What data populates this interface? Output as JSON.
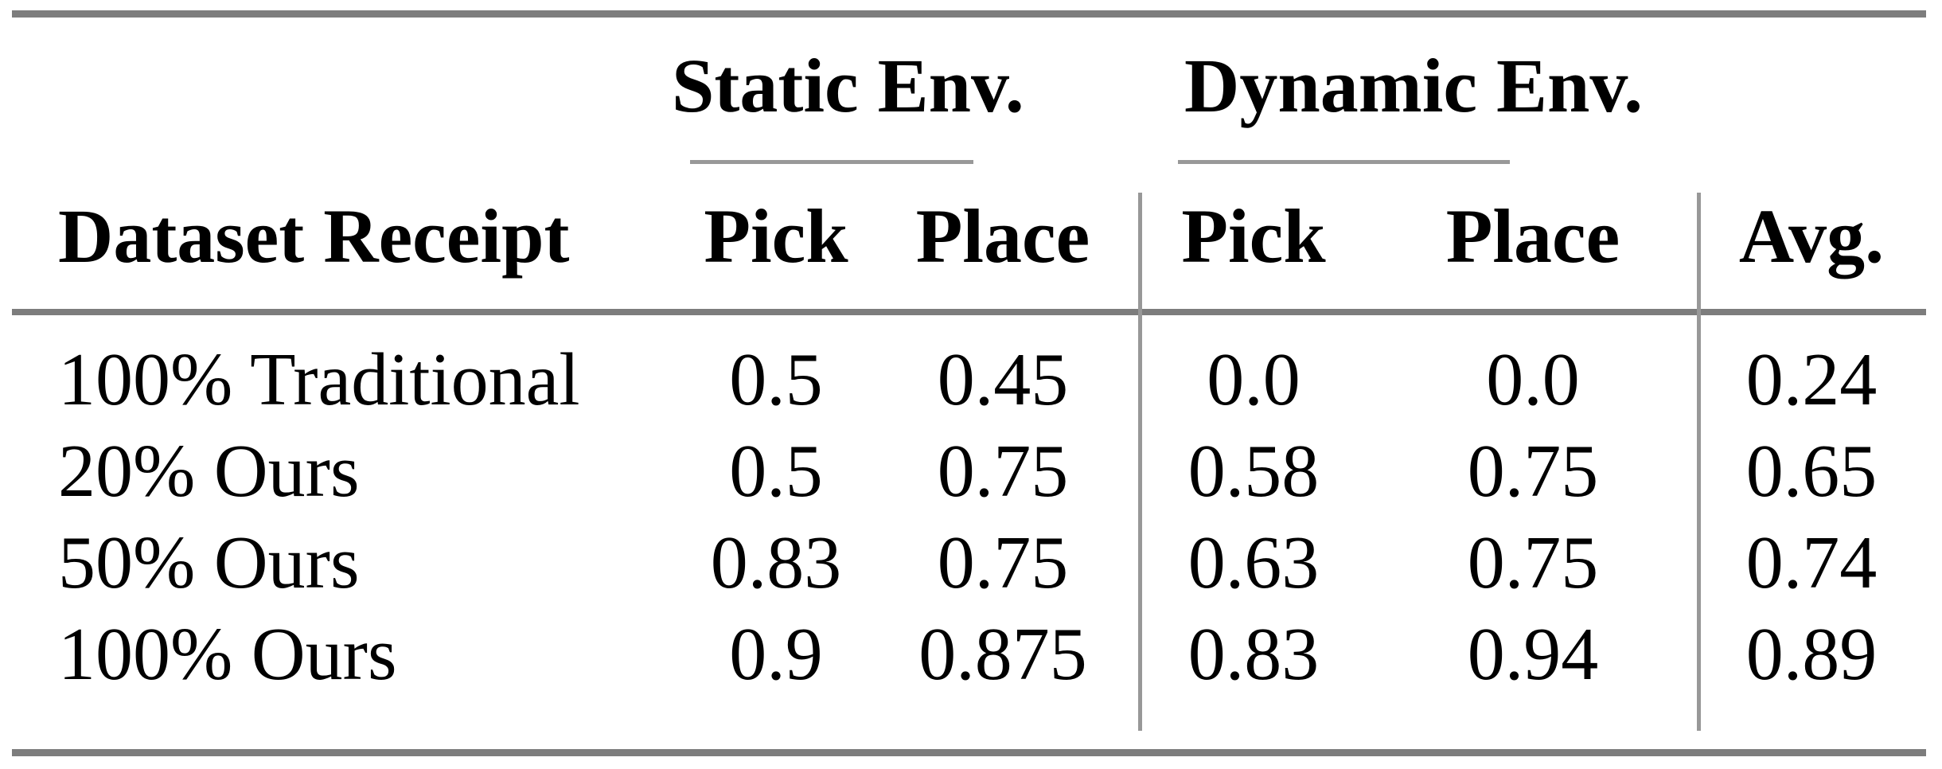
{
  "table": {
    "group_headers": {
      "static": "Static Env.",
      "dynamic": "Dynamic Env."
    },
    "column_headers": {
      "dataset": "Dataset Receipt",
      "static_pick": "Pick",
      "static_place": "Place",
      "dynamic_pick": "Pick",
      "dynamic_place": "Place",
      "avg": "Avg."
    },
    "rows": [
      {
        "label": "100% Traditional",
        "static_pick": "0.5",
        "static_place": "0.45",
        "dynamic_pick": "0.0",
        "dynamic_place": "0.0",
        "avg": "0.24"
      },
      {
        "label": "20% Ours",
        "static_pick": "0.5",
        "static_place": "0.75",
        "dynamic_pick": "0.58",
        "dynamic_place": "0.75",
        "avg": "0.65"
      },
      {
        "label": "50% Ours",
        "static_pick": "0.83",
        "static_place": "0.75",
        "dynamic_pick": "0.63",
        "dynamic_place": "0.75",
        "avg": "0.74"
      },
      {
        "label": "100% Ours",
        "static_pick": "0.9",
        "static_place": "0.875",
        "dynamic_pick": "0.83",
        "dynamic_place": "0.94",
        "avg": "0.89"
      }
    ],
    "colors": {
      "rule_heavy": "#7d7d7d",
      "rule_light": "#989898",
      "text": "#000000",
      "background": "#ffffff"
    }
  },
  "chart_data": {
    "type": "table",
    "title": "",
    "column_groups": [
      "",
      "Static Env.",
      "Static Env.",
      "Dynamic Env.",
      "Dynamic Env.",
      ""
    ],
    "columns": [
      "Dataset Receipt",
      "Pick",
      "Place",
      "Pick",
      "Place",
      "Avg."
    ],
    "rows": [
      [
        "100% Traditional",
        0.5,
        0.45,
        0.0,
        0.0,
        0.24
      ],
      [
        "20% Ours",
        0.5,
        0.75,
        0.58,
        0.75,
        0.65
      ],
      [
        "50% Ours",
        0.83,
        0.75,
        0.63,
        0.75,
        0.74
      ],
      [
        "100% Ours",
        0.9,
        0.875,
        0.83,
        0.94,
        0.89
      ]
    ]
  }
}
